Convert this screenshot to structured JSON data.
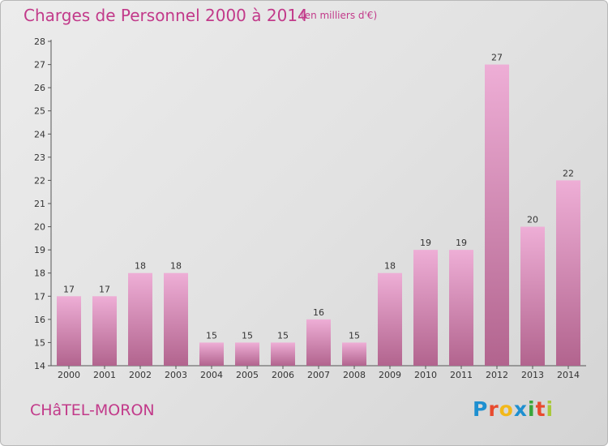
{
  "header": {
    "title": "Charges de Personnel 2000 à 2014",
    "unit": "(en milliers d'€)"
  },
  "footer": {
    "commune": "CHâTEL-MORON",
    "logo_text": "Proxiti",
    "logo_colors": [
      "#1e8fd0",
      "#e84a2e",
      "#f2b81a",
      "#1e8fd0",
      "#3aa53a",
      "#e84a2e",
      "#a9c93a"
    ]
  },
  "colors": {
    "accent": "#c23a8a",
    "bar_light": "#eeaed6",
    "bar_dark": "#b2648e",
    "axis": "#555555"
  },
  "chart_data": {
    "type": "bar",
    "title": "Charges de Personnel 2000 à 2014",
    "xlabel": "",
    "ylabel": "",
    "categories": [
      "2000",
      "2001",
      "2002",
      "2003",
      "2004",
      "2005",
      "2006",
      "2007",
      "2008",
      "2009",
      "2010",
      "2011",
      "2012",
      "2013",
      "2014"
    ],
    "values": [
      17,
      17,
      18,
      18,
      15,
      15,
      15,
      16,
      15,
      18,
      19,
      19,
      27,
      20,
      22
    ],
    "ylim": [
      14,
      28
    ],
    "yticks": [
      14,
      15,
      16,
      17,
      18,
      19,
      20,
      21,
      22,
      23,
      24,
      25,
      26,
      27,
      28
    ],
    "grid": false,
    "legend": "none"
  }
}
